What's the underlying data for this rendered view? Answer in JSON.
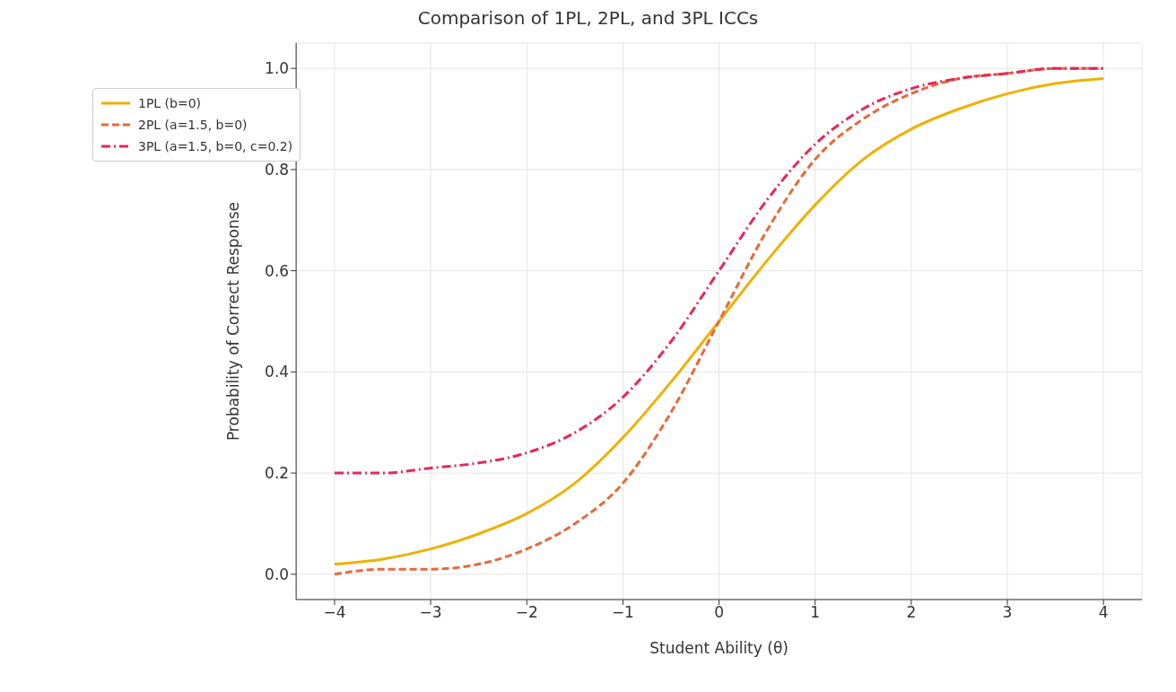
{
  "chart_data": {
    "type": "line",
    "title": "Comparison of 1PL, 2PL, and 3PL ICCs",
    "xlabel": "Student Ability (θ)",
    "ylabel": "Probability of Correct Response",
    "x": [
      -4,
      -3.5,
      -3,
      -2.5,
      -2,
      -1.5,
      -1,
      -0.5,
      0,
      0.5,
      1,
      1.5,
      2,
      2.5,
      3,
      3.5,
      4
    ],
    "series": [
      {
        "name": "1PL (b=0)",
        "color": "#f0b000",
        "line_style": "solid",
        "values": [
          0.02,
          0.03,
          0.05,
          0.08,
          0.12,
          0.18,
          0.27,
          0.38,
          0.5,
          0.62,
          0.73,
          0.82,
          0.88,
          0.92,
          0.95,
          0.97,
          0.98
        ]
      },
      {
        "name": "2PL (a=1.5, b=0)",
        "color": "#e8683a",
        "line_style": "dashed",
        "values": [
          0.0,
          0.01,
          0.01,
          0.02,
          0.05,
          0.1,
          0.18,
          0.32,
          0.5,
          0.68,
          0.82,
          0.9,
          0.95,
          0.98,
          0.99,
          1.0,
          1.0
        ]
      },
      {
        "name": "3PL (a=1.5, b=0, c=0.2)",
        "color": "#e8265a",
        "line_style": "dashdot",
        "values": [
          0.2,
          0.2,
          0.21,
          0.22,
          0.24,
          0.28,
          0.35,
          0.46,
          0.6,
          0.74,
          0.85,
          0.92,
          0.96,
          0.98,
          0.99,
          1.0,
          1.0
        ]
      }
    ],
    "xlim": [
      -4.4,
      4.4
    ],
    "xticks": [
      {
        "value": -4,
        "label": "−4"
      },
      {
        "value": -3,
        "label": "−3"
      },
      {
        "value": -2,
        "label": "−2"
      },
      {
        "value": -1,
        "label": "−1"
      },
      0,
      1,
      2,
      3,
      4
    ],
    "ylim": [
      -0.05,
      1.05
    ],
    "yticks": [
      {
        "value": 0,
        "label": "0.0"
      },
      0.2,
      0.4,
      0.6,
      0.8,
      {
        "value": 1,
        "label": "1.0"
      }
    ],
    "grid": true,
    "legend": "top left"
  }
}
